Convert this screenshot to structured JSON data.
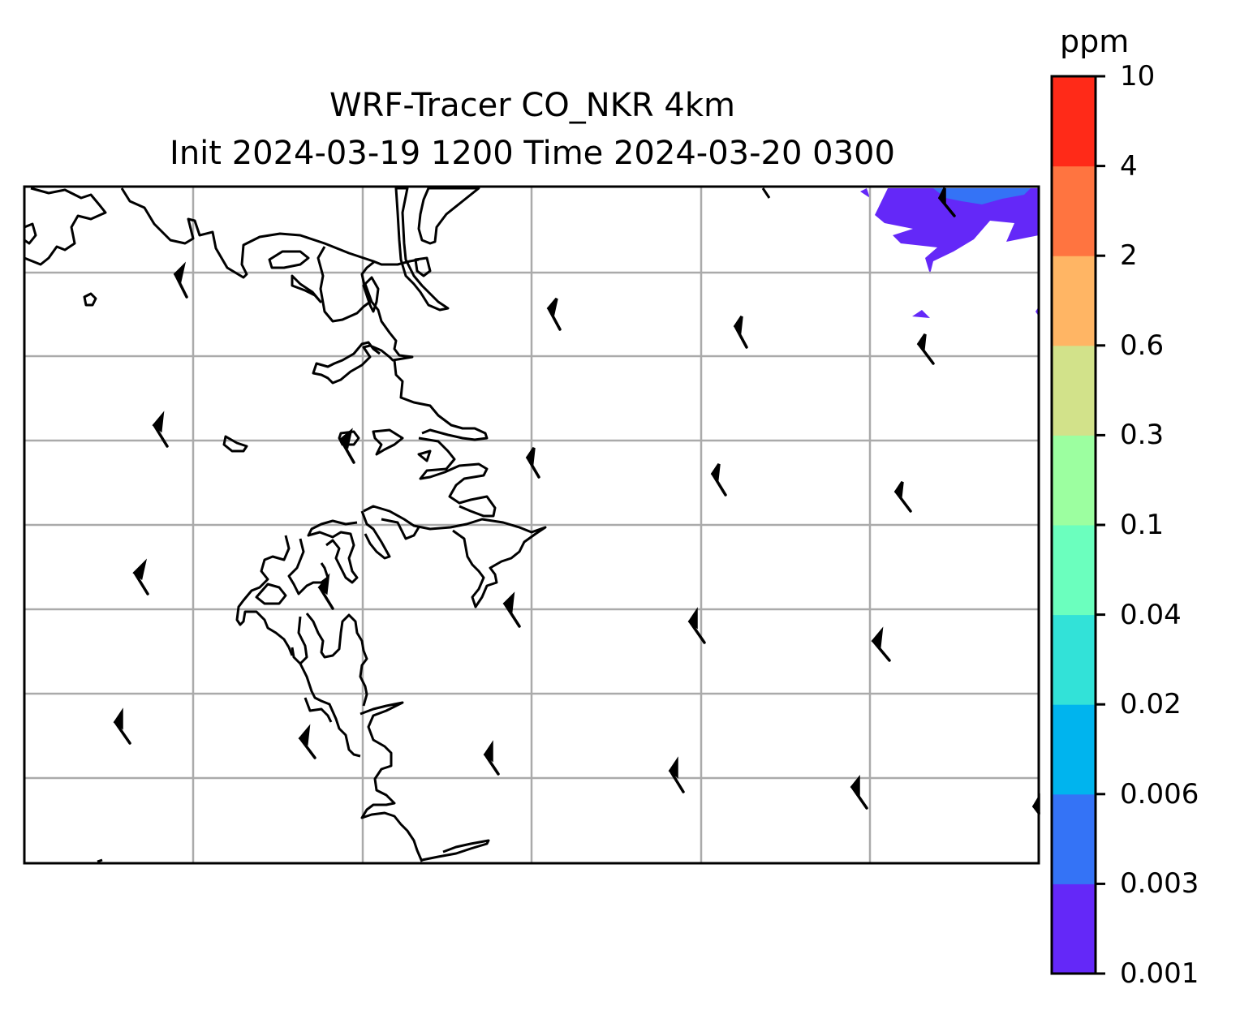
{
  "title": {
    "line1": "WRF-Tracer CO_NKR 4km",
    "line2": "Init 2024-03-19 1200 Time 2024-03-20 0300"
  },
  "colorbar": {
    "unit": "ppm",
    "levels": [
      "0.001",
      "0.003",
      "0.006",
      "0.02",
      "0.04",
      "0.1",
      "0.3",
      "0.6",
      "2",
      "4",
      "10"
    ],
    "colors": [
      "#6428f8",
      "#3473f6",
      "#00b4ee",
      "#32e2d8",
      "#6bffbe",
      "#9cffa0",
      "#d2e28a",
      "#ffb564",
      "#ff7440",
      "#ff2a18"
    ]
  },
  "map": {
    "gridlines": true,
    "coastline_color": "#000000",
    "gridline_color": "#aaaaaa",
    "field": "CO_NKR tracer concentration with wind barbs"
  }
}
